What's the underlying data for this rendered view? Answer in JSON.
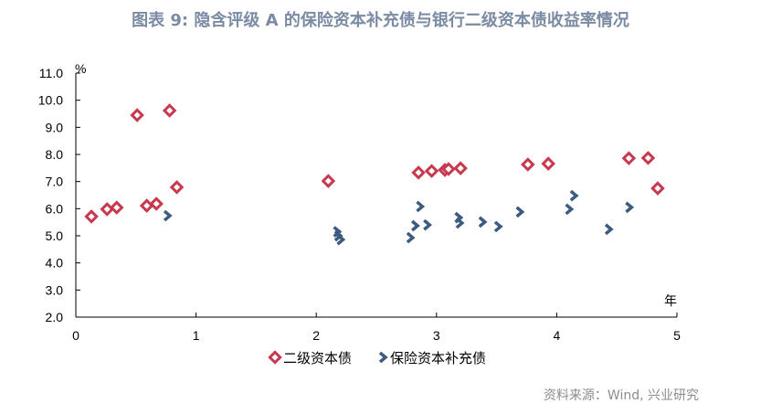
{
  "chart_data": {
    "type": "scatter",
    "title": "图表 9:  隐含评级 A 的保险资本补充债与银行二级资本债收益率情况",
    "xlabel": "年",
    "ylabel": "%",
    "xlim": [
      0,
      5
    ],
    "ylim": [
      2.0,
      11.0
    ],
    "xticks": [
      "0",
      "1",
      "2",
      "3",
      "4",
      "5"
    ],
    "yticks": [
      "2.0",
      "3.0",
      "4.0",
      "5.0",
      "6.0",
      "7.0",
      "8.0",
      "9.0",
      "10.0",
      "11.0"
    ],
    "grid": false,
    "legend_position": "bottom",
    "colors": {
      "tier2": "#c8394f",
      "insurance": "#3d5a80"
    },
    "series": [
      {
        "name": "二级资本债",
        "points": [
          [
            0.13,
            5.71
          ],
          [
            0.26,
            5.98
          ],
          [
            0.34,
            6.04
          ],
          [
            0.51,
            9.45
          ],
          [
            0.59,
            6.11
          ],
          [
            0.67,
            6.18
          ],
          [
            0.78,
            9.62
          ],
          [
            0.84,
            6.79
          ],
          [
            2.1,
            7.02
          ],
          [
            2.85,
            7.33
          ],
          [
            2.96,
            7.39
          ],
          [
            3.07,
            7.43
          ],
          [
            3.1,
            7.46
          ],
          [
            3.2,
            7.49
          ],
          [
            3.76,
            7.63
          ],
          [
            3.93,
            7.66
          ],
          [
            4.6,
            7.86
          ],
          [
            4.76,
            7.87
          ],
          [
            4.84,
            6.75
          ]
        ]
      },
      {
        "name": "保险资本补充债",
        "points": [
          [
            0.76,
            5.74
          ],
          [
            2.17,
            5.15
          ],
          [
            2.18,
            5.0
          ],
          [
            2.2,
            4.86
          ],
          [
            2.78,
            4.93
          ],
          [
            2.82,
            5.37
          ],
          [
            2.86,
            6.08
          ],
          [
            2.92,
            5.4
          ],
          [
            3.18,
            5.67
          ],
          [
            3.19,
            5.47
          ],
          [
            3.38,
            5.51
          ],
          [
            3.51,
            5.34
          ],
          [
            3.69,
            5.88
          ],
          [
            4.1,
            5.98
          ],
          [
            4.14,
            6.48
          ],
          [
            4.43,
            5.24
          ],
          [
            4.6,
            6.05
          ]
        ]
      }
    ],
    "source": "资料来源：Wind, 兴业研究"
  }
}
